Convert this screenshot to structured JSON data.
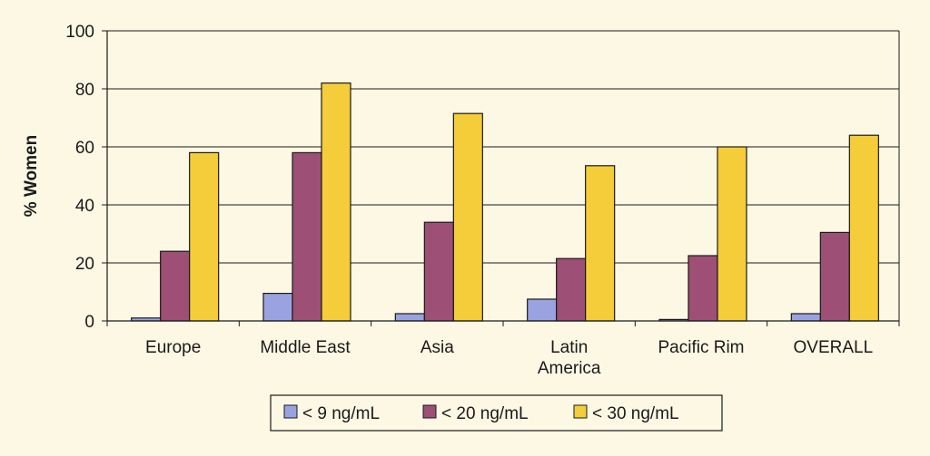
{
  "chart_data": {
    "type": "bar",
    "ylabel": "% Women",
    "ylim": [
      0,
      100
    ],
    "yticks": [
      0,
      20,
      40,
      60,
      80,
      100
    ],
    "grid": true,
    "legend_position": "bottom",
    "categories": [
      "Europe",
      "Middle East",
      "Asia",
      "Latin America",
      "Pacific Rim",
      "OVERALL"
    ],
    "category_lines": [
      [
        "Europe"
      ],
      [
        "Middle East"
      ],
      [
        "Asia"
      ],
      [
        "Latin",
        "America"
      ],
      [
        "Pacific Rim"
      ],
      [
        "OVERALL"
      ]
    ],
    "series": [
      {
        "name": "< 9 ng/mL",
        "color": "#9aa3e0",
        "values": [
          1,
          9.5,
          2.5,
          7.5,
          0.5,
          2.5
        ]
      },
      {
        "name": "< 20 ng/mL",
        "color": "#9e4f76",
        "values": [
          24,
          58,
          34,
          21.5,
          22.5,
          30.5
        ]
      },
      {
        "name": "< 30 ng/mL",
        "color": "#f5cd3a",
        "values": [
          58,
          82,
          71.5,
          53.5,
          60,
          64
        ]
      }
    ]
  }
}
